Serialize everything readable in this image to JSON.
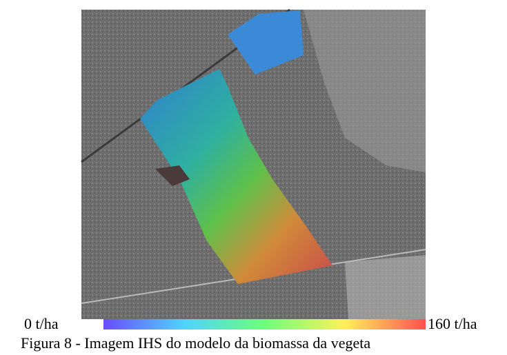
{
  "figure": {
    "colorbar": {
      "min_label": "0 t/ha",
      "max_label": "160 t/ha"
    },
    "caption": "Figura 8 - Imagem IHS do modelo da biomassa da vegeta"
  }
}
